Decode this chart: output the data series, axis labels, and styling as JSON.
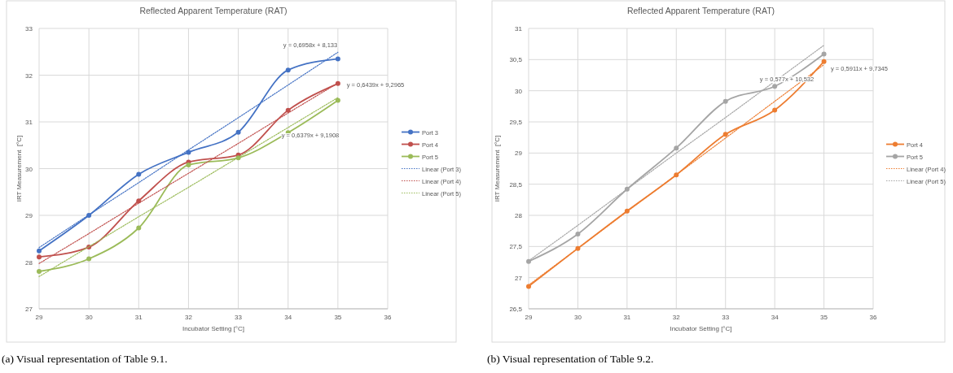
{
  "chart_data": [
    {
      "type": "line",
      "title": "Reflected Apparent Temperature (RAT)",
      "xlabel": "Incubator Setting [°C]",
      "ylabel": "IRT Measurement  [°C]",
      "xlim": [
        29,
        36
      ],
      "xticks": [
        29,
        30,
        31,
        32,
        33,
        34,
        35,
        36
      ],
      "ylim": [
        27,
        33
      ],
      "yticks": [
        27,
        28,
        29,
        30,
        31,
        32,
        33
      ],
      "grid": true,
      "legend": "right",
      "marker": "circle",
      "line_style": "solid",
      "x": [
        29,
        30,
        31,
        32,
        33,
        34,
        35
      ],
      "series": [
        {
          "name": "Port 3",
          "color": "#4472c4",
          "values": [
            28.24,
            29.0,
            29.88,
            30.35,
            30.78,
            32.11,
            32.35
          ]
        },
        {
          "name": "Port 4",
          "color": "#c0504d",
          "values": [
            28.11,
            28.32,
            29.31,
            30.14,
            30.29,
            31.25,
            31.82
          ]
        },
        {
          "name": "Port 5",
          "color": "#9bbb59",
          "values": [
            27.8,
            28.07,
            28.73,
            30.08,
            30.23,
            30.77,
            31.46
          ]
        },
        {
          "name": "Linear (Port 3)",
          "color": "#4472c4",
          "values": [
            28.31,
            29.01,
            29.7,
            30.4,
            31.09,
            31.79,
            32.49
          ],
          "marker": "none",
          "line_style": "dotted"
        },
        {
          "name": "Linear (Port 4)",
          "color": "#c0504d",
          "values": [
            27.97,
            28.61,
            29.26,
            29.9,
            30.54,
            31.19,
            31.83
          ],
          "marker": "none",
          "line_style": "dotted"
        },
        {
          "name": "Linear (Port 5)",
          "color": "#9bbb59",
          "values": [
            27.69,
            28.33,
            28.97,
            29.6,
            30.24,
            30.88,
            31.52
          ],
          "marker": "none",
          "line_style": "dotted"
        }
      ],
      "annotations": [
        "y = 0,6958x + 8,133",
        "y = 0,6439x + 9,2965",
        "y = 0,6379x + 9,1908",
        "(a) Visual representation of Table 9.1."
      ]
    },
    {
      "type": "line",
      "title": "Reflected Apparent Temperature (RAT)",
      "xlabel": "Incubator Setting [°C]",
      "ylabel": "IRT Measurement  [°C]",
      "xlim": [
        29,
        36
      ],
      "xticks": [
        29,
        30,
        31,
        32,
        33,
        34,
        35,
        36
      ],
      "ylim": [
        26.5,
        31
      ],
      "yticks": [
        {
          "value": 26.5,
          "label": "26,5"
        },
        27,
        {
          "value": 27.5,
          "label": "27,5"
        },
        28,
        {
          "value": 28.5,
          "label": "28,5"
        },
        29,
        {
          "value": 29.5,
          "label": "29,5"
        },
        30,
        {
          "value": 30.5,
          "label": "30,5"
        },
        31
      ],
      "grid": true,
      "legend": "right",
      "marker": "circle",
      "line_style": "solid",
      "x": [
        29,
        30,
        31,
        32,
        33,
        34,
        35
      ],
      "series": [
        {
          "name": "Port 4",
          "color": "#ed7d31",
          "values": [
            26.86,
            27.47,
            28.07,
            28.65,
            29.3,
            29.69,
            30.47
          ]
        },
        {
          "name": "Port 5",
          "color": "#a5a5a5",
          "values": [
            27.26,
            27.7,
            28.42,
            29.08,
            29.83,
            30.07,
            30.59
          ]
        },
        {
          "name": "Linear (Port 4)",
          "color": "#ed7d31",
          "values": [
            26.88,
            27.47,
            28.06,
            28.65,
            29.24,
            29.83,
            30.42
          ],
          "marker": "none",
          "line_style": "dotted"
        },
        {
          "name": "Linear (Port 5)",
          "color": "#a5a5a5",
          "values": [
            27.27,
            27.84,
            28.42,
            29.0,
            29.57,
            30.15,
            30.73
          ],
          "marker": "none",
          "line_style": "dotted"
        }
      ],
      "annotations": [
        "y = 0,5911x + 9,7345",
        "y = 0,577x + 10,532",
        "(b) Visual representation of Table 9.2."
      ]
    }
  ]
}
